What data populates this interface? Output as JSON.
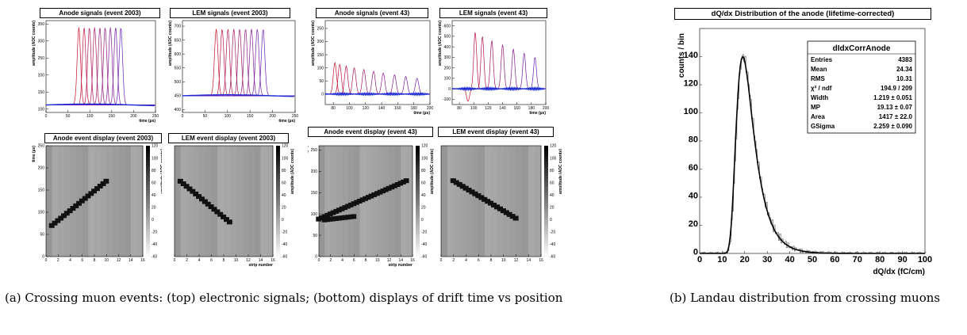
{
  "captions": {
    "a": "(a) Crossing muon events: (top) electronic signals; (bottom) displays of drift time vs position",
    "b": "(b) Landau distribution from crossing muons"
  },
  "colors": {
    "red": "#c8102e",
    "purple": "#6a1fb3",
    "blue": "#1a2bd6"
  },
  "chart_data": [
    {
      "id": "p1",
      "type": "line",
      "title": "Anode signals (event 2003)",
      "xlabel": "time (µs)",
      "ylabel": "amplitude (ADC counts)",
      "xlim": [
        0,
        250
      ],
      "ylim": [
        90,
        360
      ],
      "xticks": [
        "0",
        "50",
        "100",
        "150",
        "200",
        "250"
      ],
      "yticks": [
        "100",
        "150",
        "200",
        "250",
        "300",
        "350"
      ],
      "series": [
        {
          "name": "",
          "peaks": [
            75,
            87,
            99,
            111,
            123,
            135,
            147,
            159,
            171
          ],
          "height": 340,
          "baseline": 112
        }
      ]
    },
    {
      "id": "p2",
      "type": "line",
      "title": "LEM signals (event 2003)",
      "xlabel": "time (µs)",
      "ylabel": "amplitude (ADC counts)",
      "xlim": [
        0,
        250
      ],
      "ylim": [
        390,
        720
      ],
      "xticks": [
        "0",
        "50",
        "100",
        "150",
        "200",
        "250"
      ],
      "yticks": [
        "400",
        "450",
        "500",
        "550",
        "600",
        "650",
        "700"
      ],
      "series": [
        {
          "name": "",
          "peaks": [
            75,
            88,
            101,
            114,
            127,
            140,
            153,
            166,
            179
          ],
          "height": 690,
          "baseline": 450
        }
      ]
    },
    {
      "id": "p3",
      "type": "line",
      "title": "Anode signals (event 43)",
      "xlabel": "time (µs)",
      "ylabel": "amplitude (ADC counts)",
      "xlim": [
        70,
        200
      ],
      "ylim": [
        -40,
        280
      ],
      "xticks": [
        "80",
        "100",
        "120",
        "140",
        "160",
        "180",
        "200"
      ],
      "yticks": [
        "0",
        "50",
        "100",
        "150",
        "200",
        "250"
      ],
      "series": [
        {
          "name": "",
          "peaks": [
            82,
            88,
            96,
            106,
            118,
            130,
            142,
            156,
            170,
            184
          ],
          "height": 120,
          "baseline": 0
        }
      ]
    },
    {
      "id": "p4",
      "type": "line",
      "title": "LEM signals (event 43)",
      "xlabel": "time (µs)",
      "ylabel": "amplitude (ADC counts)",
      "xlim": [
        70,
        200
      ],
      "ylim": [
        -150,
        650
      ],
      "xticks": [
        "80",
        "100",
        "120",
        "140",
        "160",
        "180",
        "200"
      ],
      "yticks": [
        "-100",
        "0",
        "100",
        "200",
        "300",
        "400",
        "500",
        "600"
      ],
      "series": [
        {
          "name": "",
          "peaks": [
            92,
            102,
            112,
            125,
            140,
            155,
            170,
            185
          ],
          "height": 580,
          "baseline": 0
        }
      ]
    },
    {
      "id": "p5",
      "type": "heatmap",
      "title": "Anode event display (event 2003)",
      "xlabel": "",
      "ylabel": "time (µs)",
      "zlabel": "amplitude (ADC counts)",
      "xlim": [
        0,
        16
      ],
      "ylim": [
        0,
        250
      ],
      "xticks": [
        "0",
        "2",
        "4",
        "6",
        "8",
        "10",
        "12",
        "14",
        "16"
      ],
      "yticks": [
        "0",
        "50",
        "100",
        "150",
        "200",
        "250"
      ],
      "zticks": [
        "-60",
        "-40",
        "-20",
        "0",
        "20",
        "40",
        "60",
        "80",
        "100",
        "120"
      ],
      "track": [
        [
          1,
          70
        ],
        [
          10,
          170
        ]
      ]
    },
    {
      "id": "p6",
      "type": "heatmap",
      "title": "LEM event display (event 2003)",
      "xlabel": "strip number",
      "ylabel": "",
      "zlabel": "amplitude (ADC counts)",
      "xlim": [
        0,
        16
      ],
      "ylim": [
        0,
        250
      ],
      "xticks": [
        "0",
        "2",
        "4",
        "6",
        "8",
        "10",
        "12",
        "14",
        "16"
      ],
      "yticks": [],
      "zticks": [
        "-60",
        "-40",
        "-20",
        "0",
        "20",
        "40",
        "60",
        "80",
        "100",
        "120"
      ],
      "track": [
        [
          1,
          170
        ],
        [
          9,
          78
        ]
      ]
    },
    {
      "id": "p7",
      "type": "heatmap",
      "title": "Anode event display (event 43)",
      "xlabel": "strip number",
      "ylabel": "time (µs)",
      "zlabel": "amplitude (ADC counts)",
      "xlim": [
        0,
        16
      ],
      "ylim": [
        0,
        260
      ],
      "xticks": [
        "0",
        "2",
        "4",
        "6",
        "8",
        "10",
        "12",
        "14",
        "16"
      ],
      "yticks": [
        "0",
        "50",
        "100",
        "150",
        "200",
        "250"
      ],
      "zticks": [
        "-60",
        "-40",
        "-20",
        "0",
        "20",
        "40",
        "60",
        "80",
        "100",
        "120"
      ],
      "track": [
        [
          0,
          88
        ],
        [
          15,
          178
        ]
      ],
      "track2": [
        [
          1,
          86
        ],
        [
          6,
          94
        ]
      ]
    },
    {
      "id": "p8",
      "type": "heatmap",
      "title": "LEM event display (event 43)",
      "xlabel": "",
      "ylabel": "",
      "zlabel": "amplitude (ADC counts)",
      "xlim": [
        0,
        16
      ],
      "ylim": [
        0,
        260
      ],
      "xticks": [
        "0",
        "2",
        "4",
        "6",
        "8",
        "10",
        "12",
        "14",
        "16"
      ],
      "yticks": [],
      "zticks": [
        "-60",
        "-40",
        "-20",
        "0",
        "20",
        "40",
        "60",
        "80",
        "100",
        "120"
      ],
      "track": [
        [
          2,
          178
        ],
        [
          12,
          90
        ]
      ]
    },
    {
      "id": "p9",
      "type": "bar",
      "title": "dQ/dx Distribution of the anode (lifetime-corrected)",
      "xlabel": "dQ/dx (fC/cm)",
      "ylabel": "counts / bin",
      "xlim": [
        0,
        100
      ],
      "ylim": [
        0,
        160
      ],
      "xticks": [
        "0",
        "10",
        "20",
        "30",
        "40",
        "50",
        "60",
        "70",
        "80",
        "90",
        "100"
      ],
      "yticks": [
        "0",
        "20",
        "40",
        "60",
        "80",
        "100",
        "120",
        "140"
      ],
      "landau_mp": 19.13,
      "landau_width": 1.219,
      "gsigma": 2.259,
      "peak": 140,
      "stats": {
        "name": "dIdxCorrAnode",
        "rows": [
          {
            "label": "Entries",
            "value": "4383"
          },
          {
            "label": "Mean",
            "value": "24.34"
          },
          {
            "label": "RMS",
            "value": "10.31"
          },
          {
            "label": "χ² / ndf",
            "value": "194.9 / 209"
          },
          {
            "label": "Width",
            "value": "1.219 ± 0.051"
          },
          {
            "label": "MP",
            "value": "19.13 ± 0.07"
          },
          {
            "label": "Area",
            "value": "1417 ± 22.0"
          },
          {
            "label": "GSigma",
            "value": "2.259 ± 0.090"
          }
        ]
      }
    }
  ]
}
